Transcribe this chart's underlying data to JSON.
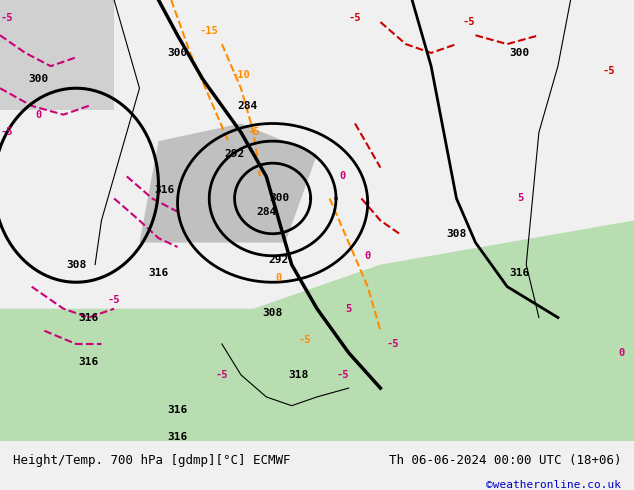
{
  "title_left": "Height/Temp. 700 hPa [gdmp][°C] ECMWF",
  "title_right": "Th 06-06-2024 00:00 UTC (18+06)",
  "watermark": "©weatheronline.co.uk",
  "bg_color": "#f0f0f0",
  "map_bg_light_green": "#c8e6c0",
  "map_bg_gray": "#d0d0d0",
  "footer_bg": "#f0f0f0",
  "footer_text_color": "#000000",
  "watermark_color": "#0000cc",
  "figsize": [
    6.34,
    4.9
  ],
  "dpi": 100
}
